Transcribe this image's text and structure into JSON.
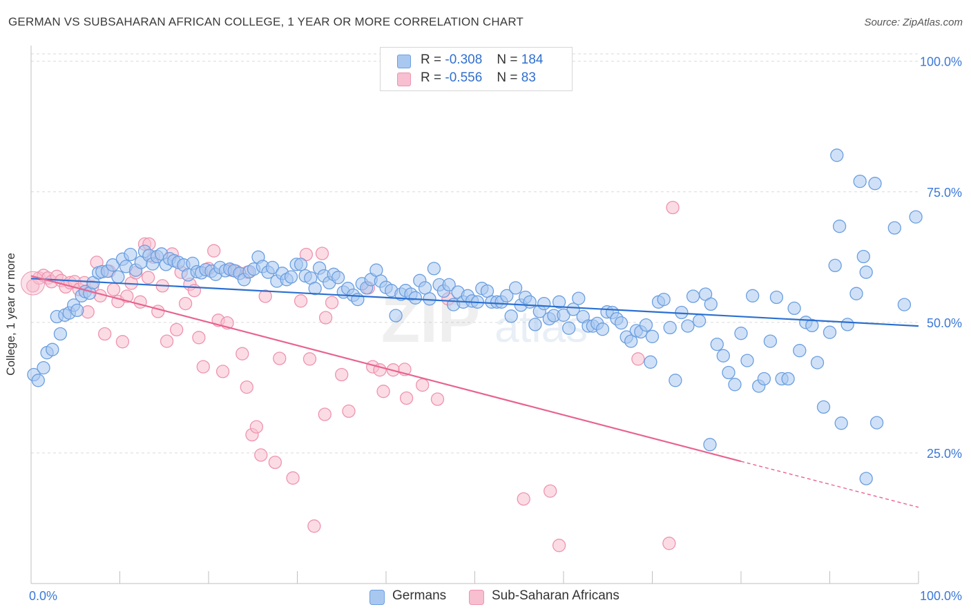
{
  "header": {
    "title": "GERMAN VS SUBSAHARAN AFRICAN COLLEGE, 1 YEAR OR MORE CORRELATION CHART",
    "source": "Source: ZipAtlas.com"
  },
  "legend": {
    "rows": [
      {
        "r_label": "R =",
        "r_value": "-0.308",
        "n_label": "N =",
        "n_value": "184"
      },
      {
        "r_label": "R =",
        "r_value": "-0.556",
        "n_label": "N =",
        "n_value": "83"
      }
    ]
  },
  "bottom_legend": {
    "series0": "Germans",
    "series1": "Sub-Saharan Africans"
  },
  "colors": {
    "germans_fill": "#a9c8f0",
    "germans_stroke": "#6a9ee0",
    "germans_line": "#2a6fd0",
    "africans_fill": "#f7bfd0",
    "africans_stroke": "#ee93ae",
    "africans_line": "#e8638f",
    "axis_text": "#3b78d8",
    "grid": "#d9d9d9"
  },
  "chart_data": {
    "type": "scatter",
    "title": "GERMAN VS SUBSAHARAN AFRICAN COLLEGE, 1 YEAR OR MORE CORRELATION CHART",
    "xlabel": "",
    "ylabel": "College, 1 year or more",
    "xlim": [
      0,
      100
    ],
    "ylim": [
      0,
      103
    ],
    "x_tick_labels": [
      "0.0%",
      "100.0%"
    ],
    "y_tick_labels": [
      {
        "value": 100,
        "label": "100.0%"
      },
      {
        "value": 75,
        "label": "75.0%"
      },
      {
        "value": 50,
        "label": "50.0%"
      },
      {
        "value": 25,
        "label": "25.0%"
      }
    ],
    "grid": "horizontal dashed",
    "legend_position": "top-center",
    "watermark": "ZIPatlas",
    "series": [
      {
        "name": "Germans",
        "r": -0.308,
        "n": 184,
        "trend": {
          "x0": 0,
          "y0": 58.4,
          "x1": 100,
          "y1": 49.3
        },
        "points": [
          [
            0.3,
            40
          ],
          [
            0.8,
            38.9
          ],
          [
            1.4,
            41.3
          ],
          [
            1.8,
            44.2
          ],
          [
            2.4,
            44.8
          ],
          [
            2.9,
            51.1
          ],
          [
            3.3,
            47.8
          ],
          [
            3.8,
            51.4
          ],
          [
            4.3,
            51.8
          ],
          [
            4.8,
            53.3
          ],
          [
            5.2,
            52.3
          ],
          [
            5.7,
            55.1
          ],
          [
            6.1,
            55.9
          ],
          [
            6.6,
            55.6
          ],
          [
            7.0,
            57.6
          ],
          [
            7.6,
            59.5
          ],
          [
            8.0,
            59.7
          ],
          [
            8.6,
            59.8
          ],
          [
            9.2,
            61.0
          ],
          [
            9.8,
            58.7
          ],
          [
            10.3,
            62.1
          ],
          [
            10.7,
            60.7
          ],
          [
            11.2,
            63.0
          ],
          [
            11.8,
            60.0
          ],
          [
            12.4,
            61.5
          ],
          [
            12.8,
            63.6
          ],
          [
            13.3,
            62.8
          ],
          [
            13.7,
            61.2
          ],
          [
            14.2,
            62.6
          ],
          [
            14.7,
            63.1
          ],
          [
            15.2,
            61.1
          ],
          [
            15.6,
            62.2
          ],
          [
            16.1,
            61.8
          ],
          [
            16.6,
            61.5
          ],
          [
            17.2,
            61.0
          ],
          [
            17.7,
            59.1
          ],
          [
            18.2,
            61.3
          ],
          [
            18.7,
            59.7
          ],
          [
            19.2,
            59.5
          ],
          [
            19.7,
            60.1
          ],
          [
            20.3,
            59.8
          ],
          [
            20.8,
            59.2
          ],
          [
            21.3,
            60.5
          ],
          [
            21.9,
            59.9
          ],
          [
            22.4,
            60.2
          ],
          [
            22.9,
            59.9
          ],
          [
            23.5,
            59.4
          ],
          [
            24.0,
            58.2
          ],
          [
            24.6,
            59.7
          ],
          [
            25.1,
            60.2
          ],
          [
            25.6,
            62.5
          ],
          [
            26.1,
            60.7
          ],
          [
            26.7,
            59.6
          ],
          [
            27.2,
            60.5
          ],
          [
            27.7,
            57.9
          ],
          [
            28.3,
            59.4
          ],
          [
            28.8,
            58.2
          ],
          [
            29.3,
            58.7
          ],
          [
            29.9,
            61.1
          ],
          [
            30.4,
            61.1
          ],
          [
            30.9,
            58.9
          ],
          [
            31.5,
            58.5
          ],
          [
            32.0,
            56.5
          ],
          [
            32.5,
            60.4
          ],
          [
            33.0,
            58.9
          ],
          [
            33.6,
            57.6
          ],
          [
            34.1,
            59.2
          ],
          [
            34.6,
            58.6
          ],
          [
            35.2,
            55.8
          ],
          [
            35.7,
            56.5
          ],
          [
            36.3,
            55.2
          ],
          [
            36.8,
            54.4
          ],
          [
            37.3,
            57.4
          ],
          [
            37.8,
            56.6
          ],
          [
            38.3,
            58.2
          ],
          [
            38.9,
            60.0
          ],
          [
            39.4,
            57.9
          ],
          [
            40.0,
            56.7
          ],
          [
            40.6,
            56.1
          ],
          [
            41.1,
            51.3
          ],
          [
            41.7,
            55.4
          ],
          [
            42.2,
            56.1
          ],
          [
            42.8,
            55.4
          ],
          [
            43.3,
            54.7
          ],
          [
            43.8,
            58.0
          ],
          [
            44.4,
            56.6
          ],
          [
            44.9,
            54.5
          ],
          [
            45.4,
            60.3
          ],
          [
            46.0,
            57.2
          ],
          [
            46.5,
            56.0
          ],
          [
            47.1,
            57.2
          ],
          [
            47.6,
            53.4
          ],
          [
            48.1,
            55.8
          ],
          [
            48.7,
            53.9
          ],
          [
            49.2,
            55.1
          ],
          [
            49.7,
            54.1
          ],
          [
            50.3,
            53.9
          ],
          [
            50.8,
            56.5
          ],
          [
            51.4,
            56.0
          ],
          [
            51.9,
            53.9
          ],
          [
            52.5,
            53.9
          ],
          [
            53.0,
            53.9
          ],
          [
            53.6,
            55.1
          ],
          [
            54.1,
            51.2
          ],
          [
            54.6,
            56.6
          ],
          [
            55.2,
            53.3
          ],
          [
            55.7,
            54.8
          ],
          [
            56.2,
            53.9
          ],
          [
            56.8,
            49.6
          ],
          [
            57.3,
            52.1
          ],
          [
            57.8,
            53.6
          ],
          [
            58.4,
            50.7
          ],
          [
            58.9,
            51.3
          ],
          [
            59.5,
            53.9
          ],
          [
            60.0,
            51.4
          ],
          [
            60.6,
            48.9
          ],
          [
            61.1,
            52.5
          ],
          [
            61.7,
            54.6
          ],
          [
            62.2,
            51.1
          ],
          [
            62.8,
            49.3
          ],
          [
            63.3,
            49.3
          ],
          [
            63.8,
            49.8
          ],
          [
            64.4,
            48.7
          ],
          [
            64.9,
            52.0
          ],
          [
            65.5,
            51.9
          ],
          [
            66.0,
            50.7
          ],
          [
            66.5,
            49.9
          ],
          [
            67.1,
            47.2
          ],
          [
            67.6,
            46.4
          ],
          [
            68.2,
            48.4
          ],
          [
            68.7,
            48.2
          ],
          [
            69.3,
            49.5
          ],
          [
            70.0,
            47.3
          ],
          [
            70.7,
            53.9
          ],
          [
            71.3,
            54.4
          ],
          [
            72.0,
            49.0
          ],
          [
            72.6,
            38.9
          ],
          [
            73.3,
            51.9
          ],
          [
            74.0,
            49.3
          ],
          [
            74.6,
            55.0
          ],
          [
            75.3,
            50.3
          ],
          [
            76.0,
            55.4
          ],
          [
            76.6,
            53.5
          ],
          [
            77.3,
            45.8
          ],
          [
            78.0,
            43.6
          ],
          [
            78.6,
            40.4
          ],
          [
            79.3,
            38.1
          ],
          [
            80.0,
            47.9
          ],
          [
            80.7,
            42.7
          ],
          [
            81.3,
            55.1
          ],
          [
            82.0,
            37.8
          ],
          [
            82.6,
            39.2
          ],
          [
            83.3,
            46.4
          ],
          [
            84.0,
            54.8
          ],
          [
            84.6,
            39.2
          ],
          [
            85.3,
            39.2
          ],
          [
            86.0,
            52.7
          ],
          [
            86.6,
            44.6
          ],
          [
            87.3,
            50.0
          ],
          [
            88.0,
            49.4
          ],
          [
            88.6,
            42.3
          ],
          [
            89.3,
            33.8
          ],
          [
            90.0,
            48.1
          ],
          [
            90.6,
            60.9
          ],
          [
            91.3,
            30.7
          ],
          [
            92.0,
            49.6
          ],
          [
            93.0,
            55.5
          ],
          [
            95.3,
            30.8
          ],
          [
            94.1,
            59.6
          ],
          [
            93.8,
            62.6
          ],
          [
            98.4,
            53.4
          ],
          [
            99.7,
            70.2
          ],
          [
            97.3,
            68.1
          ],
          [
            91.1,
            68.4
          ],
          [
            90.8,
            82.0
          ],
          [
            93.4,
            77.0
          ],
          [
            95.1,
            76.6
          ],
          [
            76.5,
            26.6
          ],
          [
            94.1,
            20.1
          ],
          [
            69.8,
            42.4
          ]
        ]
      },
      {
        "name": "Sub-Saharan Africans",
        "r": -0.556,
        "n": 83,
        "trend": {
          "x0": 0,
          "y0": 58.9,
          "x1": 80,
          "y1": 23.4,
          "dashed_to_x": 100,
          "dashed_to_y": 14.6
        },
        "points": [
          [
            0.2,
            57.0
          ],
          [
            0.9,
            58.5
          ],
          [
            1.4,
            59.0
          ],
          [
            1.9,
            58.5
          ],
          [
            2.3,
            57.8
          ],
          [
            2.9,
            58.8
          ],
          [
            3.4,
            58.0
          ],
          [
            3.9,
            56.8
          ],
          [
            4.4,
            57.6
          ],
          [
            4.9,
            57.8
          ],
          [
            5.4,
            56.3
          ],
          [
            6.0,
            57.6
          ],
          [
            6.4,
            52.0
          ],
          [
            6.9,
            56.8
          ],
          [
            7.4,
            61.5
          ],
          [
            7.8,
            55.1
          ],
          [
            8.3,
            47.8
          ],
          [
            8.8,
            59.8
          ],
          [
            9.3,
            56.3
          ],
          [
            9.8,
            54.0
          ],
          [
            10.3,
            46.3
          ],
          [
            10.8,
            55.0
          ],
          [
            11.3,
            57.5
          ],
          [
            11.8,
            59.5
          ],
          [
            12.3,
            53.9
          ],
          [
            12.8,
            65.0
          ],
          [
            13.2,
            58.6
          ],
          [
            13.8,
            62.5
          ],
          [
            14.3,
            52.1
          ],
          [
            14.8,
            57.0
          ],
          [
            15.3,
            46.4
          ],
          [
            15.9,
            63.1
          ],
          [
            16.4,
            48.6
          ],
          [
            16.9,
            59.6
          ],
          [
            17.4,
            53.6
          ],
          [
            17.9,
            57.3
          ],
          [
            18.4,
            56.1
          ],
          [
            18.9,
            47.1
          ],
          [
            19.4,
            41.5
          ],
          [
            20.0,
            60.3
          ],
          [
            20.6,
            63.7
          ],
          [
            21.1,
            50.4
          ],
          [
            21.6,
            40.6
          ],
          [
            22.1,
            49.9
          ],
          [
            22.6,
            60.0
          ],
          [
            23.1,
            59.8
          ],
          [
            23.8,
            44.0
          ],
          [
            24.3,
            37.6
          ],
          [
            24.9,
            28.5
          ],
          [
            25.4,
            30.0
          ],
          [
            25.9,
            24.6
          ],
          [
            26.4,
            55.0
          ],
          [
            27.5,
            23.2
          ],
          [
            28.0,
            43.1
          ],
          [
            29.5,
            20.2
          ],
          [
            30.4,
            54.1
          ],
          [
            31.0,
            63.0
          ],
          [
            31.4,
            43.0
          ],
          [
            31.9,
            11.0
          ],
          [
            32.8,
            63.2
          ],
          [
            33.1,
            32.4
          ],
          [
            33.2,
            50.9
          ],
          [
            33.9,
            53.8
          ],
          [
            35.0,
            40.0
          ],
          [
            35.8,
            33.0
          ],
          [
            38.0,
            56.6
          ],
          [
            38.5,
            41.5
          ],
          [
            39.3,
            40.9
          ],
          [
            39.7,
            36.8
          ],
          [
            40.8,
            40.9
          ],
          [
            42.1,
            41.0
          ],
          [
            42.3,
            35.5
          ],
          [
            44.1,
            38.0
          ],
          [
            45.8,
            35.3
          ],
          [
            47.0,
            54.5
          ],
          [
            55.5,
            16.2
          ],
          [
            58.5,
            17.7
          ],
          [
            59.5,
            7.3
          ],
          [
            68.4,
            43.0
          ],
          [
            71.9,
            7.7
          ],
          [
            72.3,
            72.0
          ],
          [
            24.4,
            59.6
          ],
          [
            13.3,
            65.0
          ]
        ]
      }
    ]
  }
}
